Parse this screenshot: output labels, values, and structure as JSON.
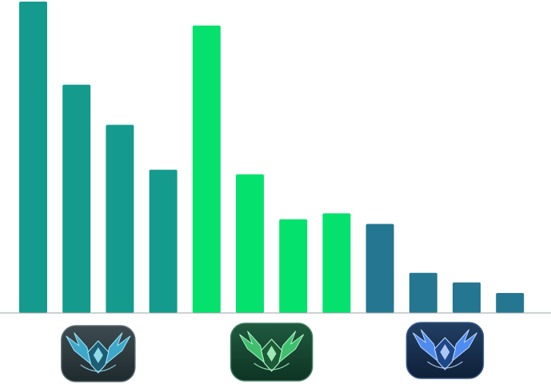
{
  "chart_data": {
    "type": "bar",
    "title": "",
    "xlabel": "",
    "ylabel": "",
    "ylim": [
      0,
      100
    ],
    "grid": false,
    "legend": "none",
    "groups": [
      {
        "icon": "diamond-rank-emblem-icon",
        "color": "#149b8e",
        "values": [
          100,
          73.3,
          60.4,
          46.0
        ]
      },
      {
        "icon": "master-rank-emblem-icon",
        "color": "#04e26d",
        "values": [
          92.3,
          44.5,
          30.1,
          32.0
        ]
      },
      {
        "icon": "grandmaster-rank-emblem-icon",
        "color": "#257791",
        "values": [
          28.6,
          12.9,
          9.8,
          6.4
        ]
      }
    ]
  }
}
